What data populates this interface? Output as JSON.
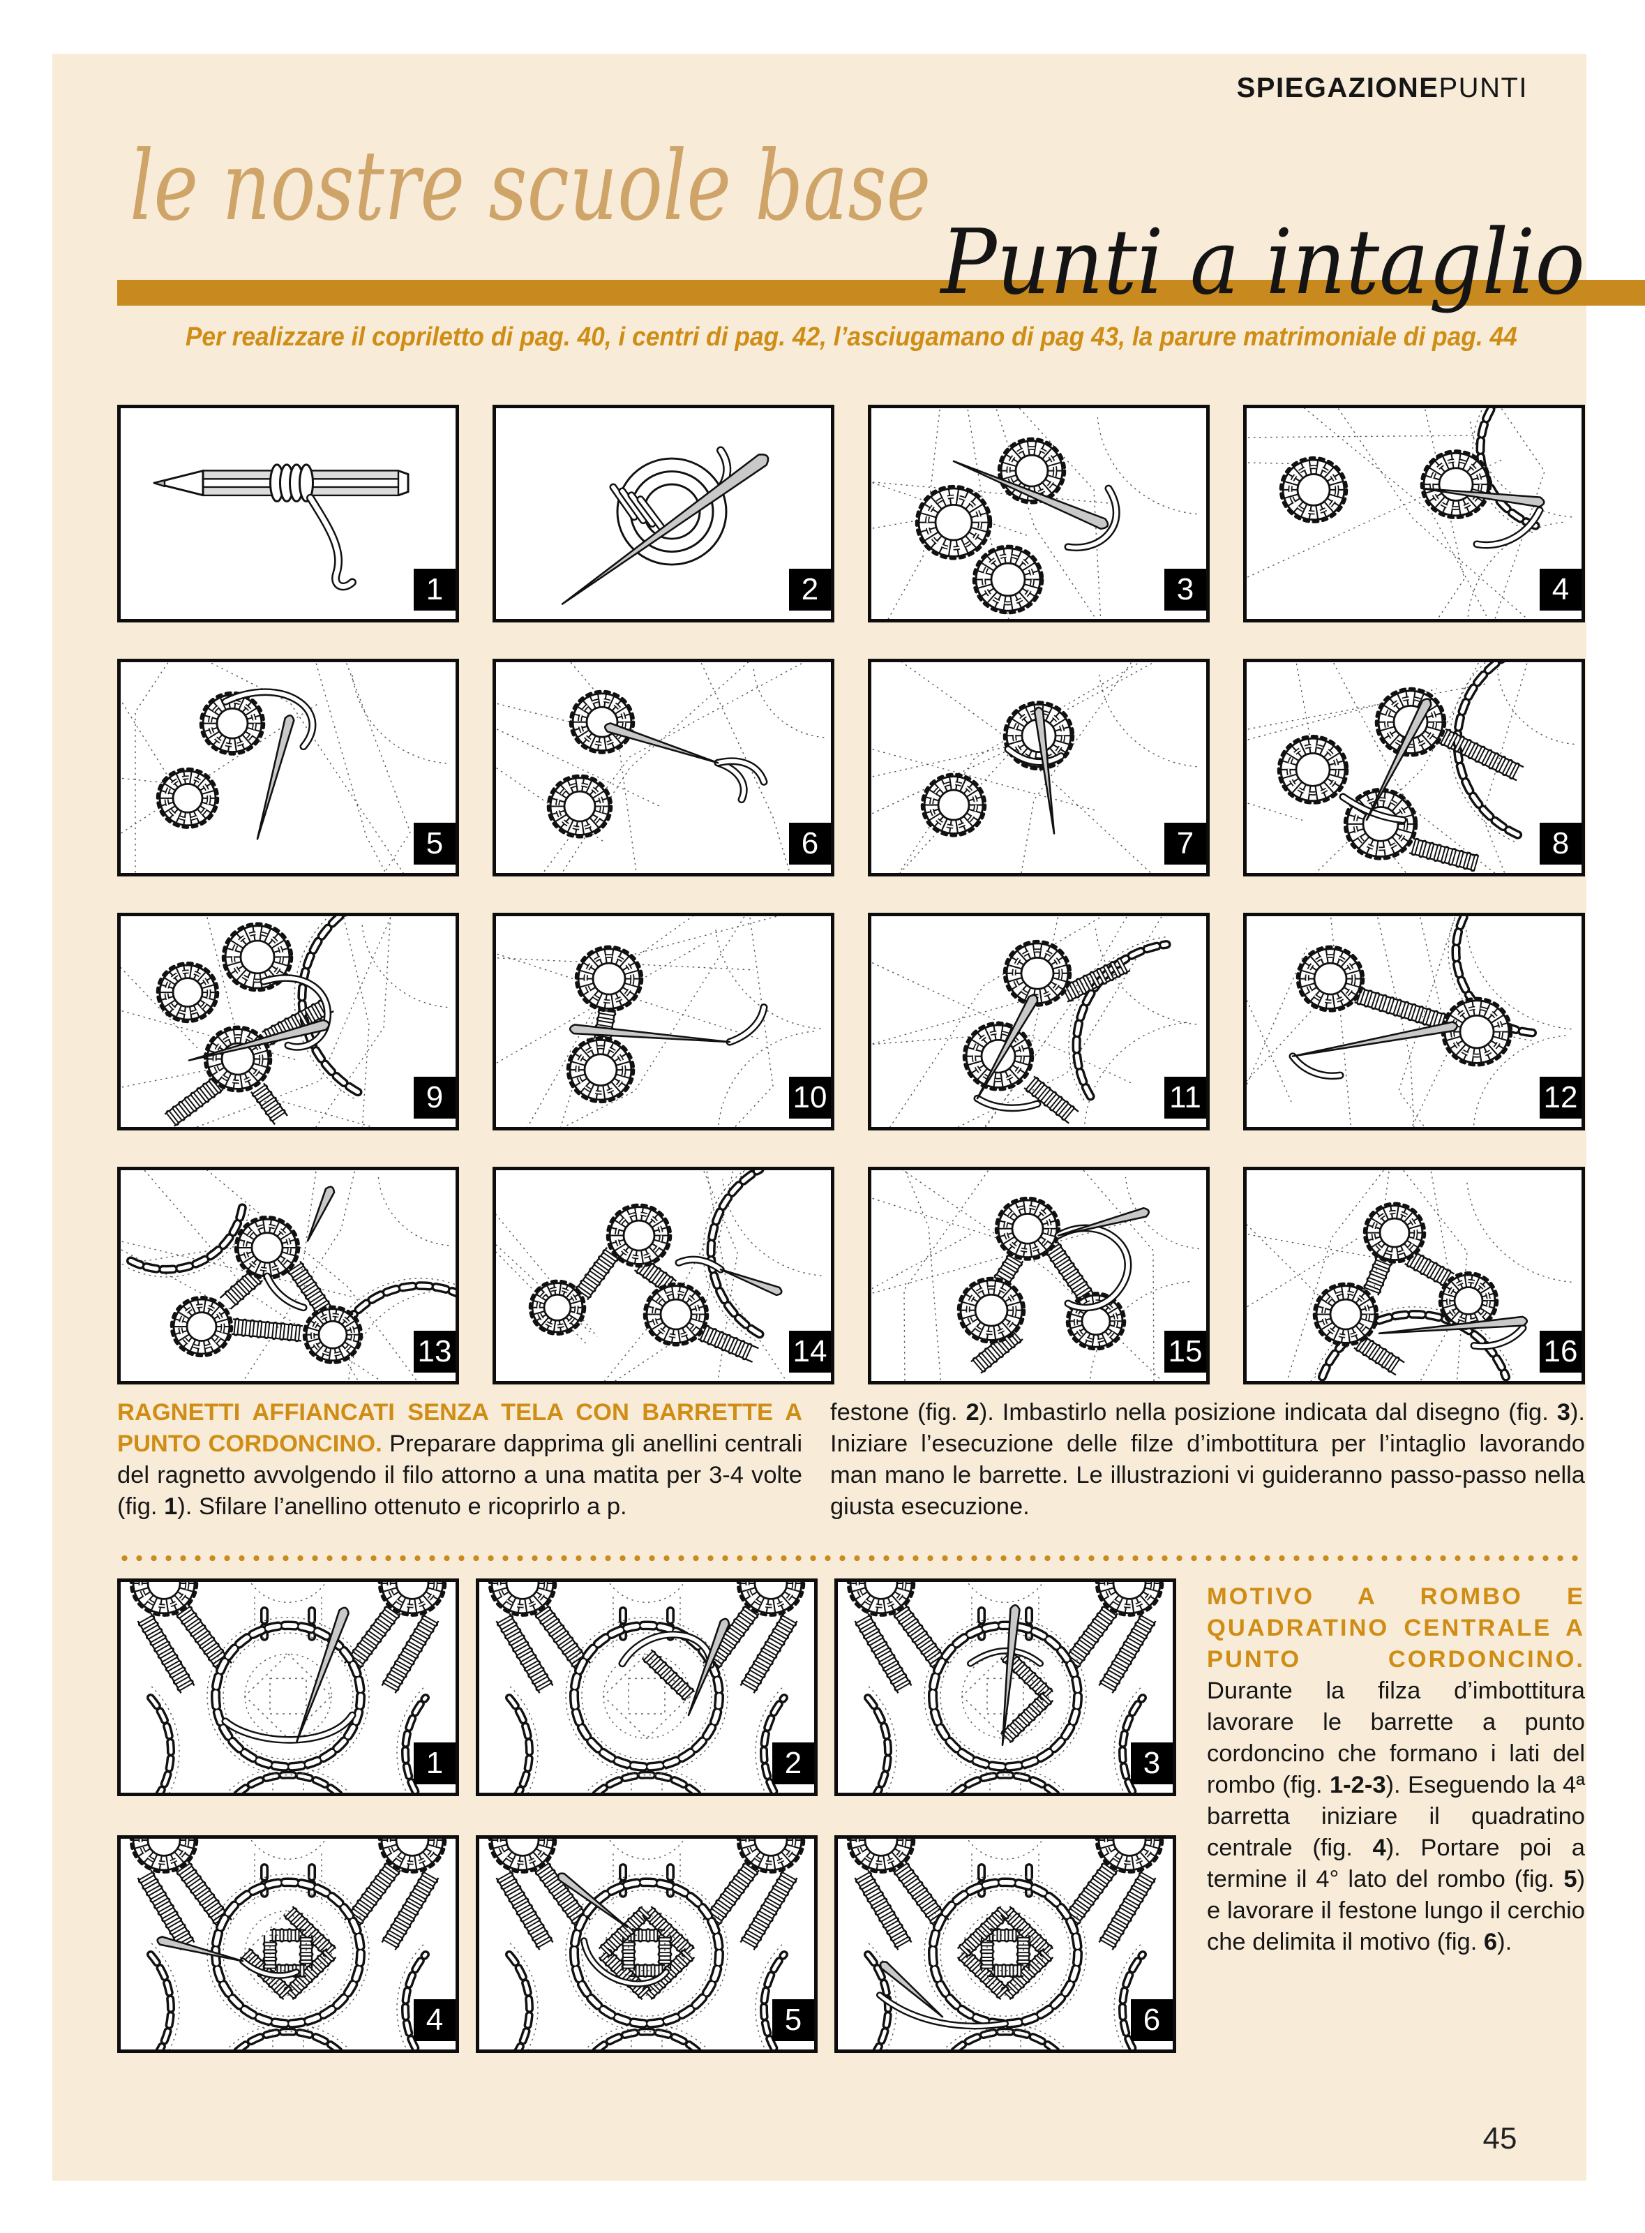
{
  "page": {
    "background": "#f8ecd9",
    "accent": "#c8891e",
    "number": "45"
  },
  "header": {
    "kicker_bold": "SPIEGAZIONE",
    "kicker_light": "PUNTI",
    "script_title": "le nostre scuole base",
    "title": "Punti a intaglio",
    "subtitle": "Per realizzare il copriletto di pag. 40, i centri di pag. 42, l’asciugamano di pag 43, la parure matrimoniale di pag. 44"
  },
  "figures_top": {
    "labels": [
      "1",
      "2",
      "3",
      "4",
      "5",
      "6",
      "7",
      "8",
      "9",
      "10",
      "11",
      "12",
      "13",
      "14",
      "15",
      "16"
    ],
    "types": [
      "pencil-thread-wrap",
      "thread-coil-needle",
      "lace-step",
      "lace-step",
      "lace-step",
      "lace-step",
      "lace-step",
      "lace-step",
      "lace-step",
      "lace-step",
      "lace-step",
      "lace-step",
      "lace-step",
      "lace-step",
      "lace-step",
      "lace-step"
    ]
  },
  "figures_bottom": {
    "labels": [
      "1",
      "2",
      "3",
      "4",
      "5",
      "6"
    ],
    "types": [
      "rombo-step",
      "rombo-step",
      "rombo-step",
      "rombo-step",
      "rombo-step",
      "rombo-step"
    ]
  },
  "section1": {
    "left": [
      {
        "t": "RAGNETTI AFFIANCATI SENZA TELA CON BARRETTE A PUNTO CORDONCINO.",
        "s": "lead"
      },
      {
        "t": " Preparare dapprima gli anellini centrali del ragnetto avvolgendo il filo attorno a una matita per 3-4 volte (fig. "
      },
      {
        "t": "1",
        "s": "b"
      },
      {
        "t": "). Sfilare l’anellino ottenuto e ricoprirlo a p."
      }
    ],
    "right": [
      {
        "t": "festone (fig. "
      },
      {
        "t": "2",
        "s": "b"
      },
      {
        "t": "). Imbastirlo nella posizione indicata dal disegno (fig. "
      },
      {
        "t": "3",
        "s": "b"
      },
      {
        "t": "). Iniziare l’esecuzione delle filze d’imbottitura per l’intaglio lavorando man mano le barrette. Le illustrazioni vi guideranno passo-passo nella giusta esecuzione."
      }
    ]
  },
  "section2": {
    "body": [
      {
        "t": "MOTIVO A ROMBO E QUADRATINO CENTRALE A PUNTO CORDONCINO.",
        "s": "lead"
      },
      {
        "t": " Durante la filza d’imbottitura lavorare le barrette a punto cordoncino che formano i lati del rombo (fig. "
      },
      {
        "t": "1-2-3",
        "s": "b"
      },
      {
        "t": "). Eseguendo la 4ª barretta iniziare il quadratino centrale (fig. "
      },
      {
        "t": "4",
        "s": "b"
      },
      {
        "t": "). Portare poi a termine il 4° lato del rombo (fig. "
      },
      {
        "t": "5",
        "s": "b"
      },
      {
        "t": ") e lavorare il festone lungo il cerchio che delimita il motivo (fig. "
      },
      {
        "t": "6",
        "s": "b"
      },
      {
        "t": ")."
      }
    ]
  }
}
